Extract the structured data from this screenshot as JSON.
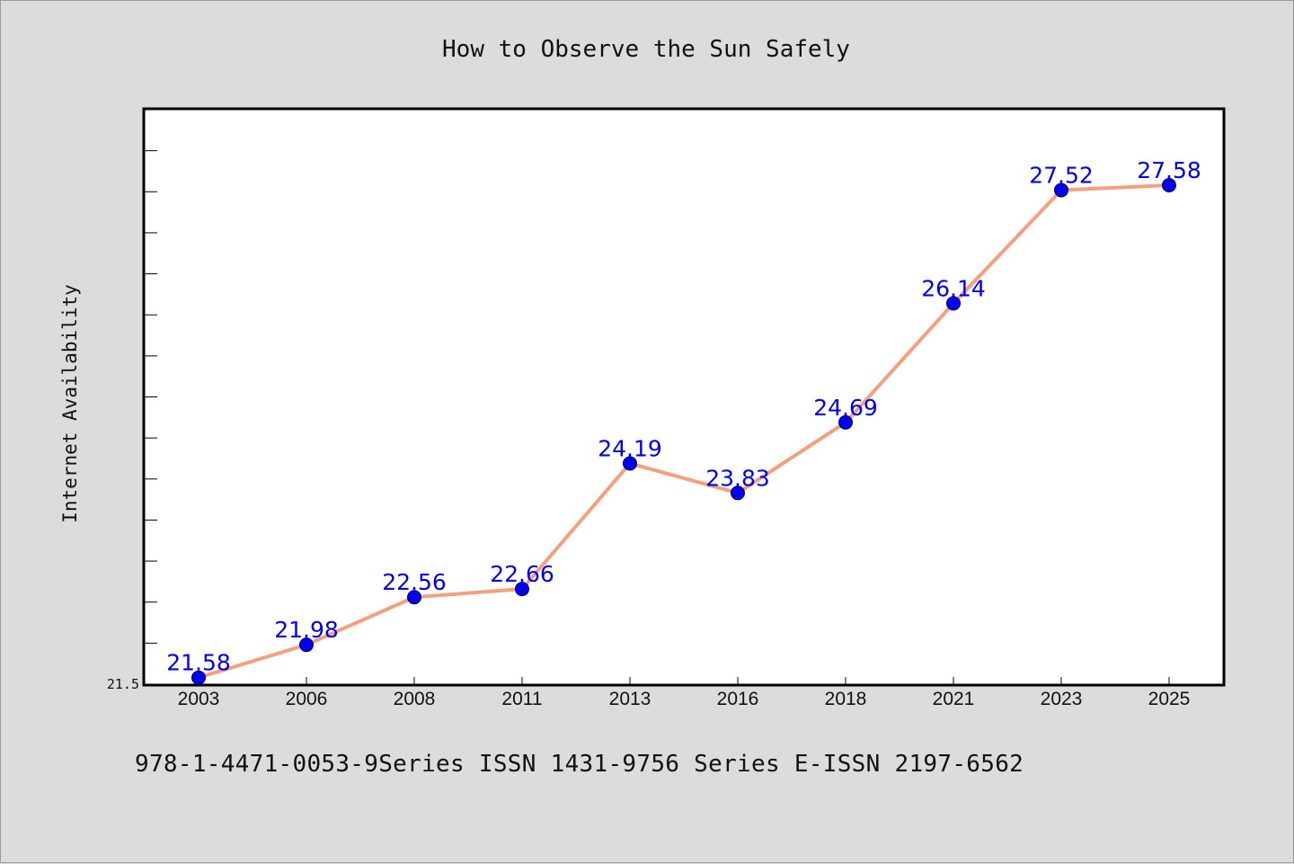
{
  "colors": {
    "background": "#dcdcdc",
    "plot_background": "#ffffff",
    "line": "#f4a07c",
    "marker": "#0000ee",
    "data_label": "#0000ee"
  },
  "footer": {
    "text": "978-1-4471-0053-9Series ISSN 1431-9756 Series E-ISSN 2197-6562"
  },
  "chart_data": {
    "type": "line",
    "title": "How to Observe the Sun Safely",
    "xlabel": "",
    "ylabel": "Internet Availability",
    "categories": [
      "2003",
      "2006",
      "2008",
      "2011",
      "2013",
      "2016",
      "2018",
      "2021",
      "2023",
      "2025"
    ],
    "series": [
      {
        "values": [
          21.58,
          21.98,
          22.56,
          22.66,
          24.19,
          23.83,
          24.69,
          26.14,
          27.52,
          27.58
        ],
        "labels": [
          "21.58",
          "21.98",
          "22.56",
          "22.66",
          "24.19",
          "23.83",
          "24.69",
          "26.14",
          "27.52",
          "27.58"
        ]
      }
    ],
    "ylim": [
      21.5,
      28.5
    ],
    "yticks": [
      "21.5"
    ],
    "grid": false,
    "legend": "none"
  }
}
